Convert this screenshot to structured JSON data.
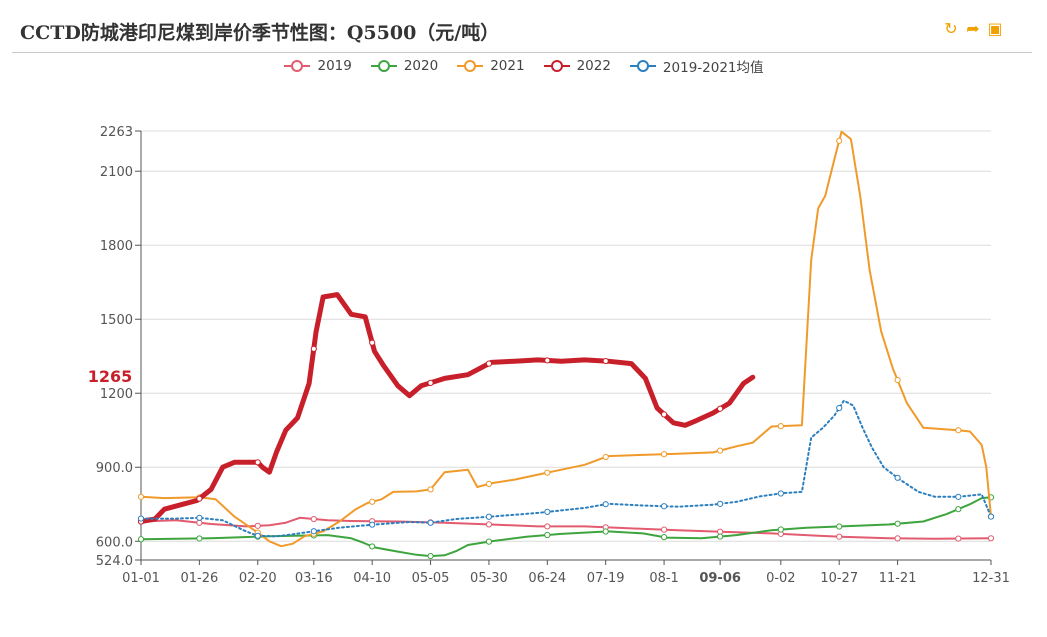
{
  "header": {
    "title": "CCTD防城港印尼煤到岸价季节性图：Q5500（元/吨）",
    "tools": [
      {
        "icon": "refresh-icon",
        "glyph": "↻"
      },
      {
        "icon": "share-icon",
        "glyph": "➦"
      },
      {
        "icon": "save-image-icon",
        "glyph": "▣"
      }
    ]
  },
  "chart_data": {
    "type": "line",
    "title": "CCTD防城港印尼煤到岸价季节性图：Q5500（元/吨）",
    "xlabel": "",
    "ylabel": "",
    "x_ticks": [
      "01-01",
      "01-26",
      "02-20",
      "03-16",
      "04-10",
      "05-05",
      "05-30",
      "06-24",
      "07-19",
      "08-1",
      "09-06",
      "0-02",
      "10-27",
      "11-21",
      "12-31"
    ],
    "x_tick_days": [
      0,
      25,
      50,
      74,
      99,
      124,
      149,
      174,
      199,
      224,
      248,
      274,
      299,
      324,
      364
    ],
    "highlight_x_tick": "09-06",
    "y_ticks": [
      524.0,
      600.0,
      900.0,
      1200,
      1500,
      1800,
      2100,
      2263
    ],
    "y_tick_labels": [
      "524.0",
      "600.0",
      "900.0",
      "1200",
      "1500",
      "1800",
      "2100",
      "2263"
    ],
    "ylim": [
      524,
      2263
    ],
    "highlight_y": {
      "value": 1265,
      "label": "1265",
      "color": "#c8202b"
    },
    "grid": true,
    "legend_position": "top-center",
    "series": [
      {
        "name": "2019",
        "color": "#e25b6e",
        "dashed": false,
        "width": 2,
        "points": [
          [
            0,
            680
          ],
          [
            15,
            685
          ],
          [
            30,
            670
          ],
          [
            45,
            660
          ],
          [
            55,
            665
          ],
          [
            62,
            675
          ],
          [
            68,
            695
          ],
          [
            74,
            690
          ],
          [
            80,
            685
          ],
          [
            90,
            682
          ],
          [
            110,
            680
          ],
          [
            130,
            675
          ],
          [
            150,
            668
          ],
          [
            170,
            660
          ],
          [
            190,
            660
          ],
          [
            210,
            652
          ],
          [
            230,
            645
          ],
          [
            250,
            638
          ],
          [
            270,
            632
          ],
          [
            290,
            622
          ],
          [
            300,
            618
          ],
          [
            320,
            612
          ],
          [
            340,
            610
          ],
          [
            364,
            612
          ]
        ]
      },
      {
        "name": "2020",
        "color": "#3ea43e",
        "dashed": false,
        "width": 2,
        "points": [
          [
            0,
            608
          ],
          [
            30,
            612
          ],
          [
            55,
            620
          ],
          [
            80,
            625
          ],
          [
            90,
            612
          ],
          [
            95,
            595
          ],
          [
            100,
            575
          ],
          [
            110,
            558
          ],
          [
            118,
            545
          ],
          [
            124,
            540
          ],
          [
            130,
            543
          ],
          [
            135,
            560
          ],
          [
            140,
            585
          ],
          [
            150,
            600
          ],
          [
            165,
            618
          ],
          [
            180,
            630
          ],
          [
            200,
            640
          ],
          [
            215,
            632
          ],
          [
            225,
            615
          ],
          [
            240,
            612
          ],
          [
            255,
            625
          ],
          [
            270,
            645
          ],
          [
            285,
            655
          ],
          [
            300,
            660
          ],
          [
            320,
            668
          ],
          [
            335,
            680
          ],
          [
            345,
            710
          ],
          [
            355,
            750
          ],
          [
            360,
            775
          ],
          [
            364,
            778
          ]
        ]
      },
      {
        "name": "2021",
        "color": "#f09a2a",
        "dashed": false,
        "width": 2,
        "points": [
          [
            0,
            780
          ],
          [
            10,
            775
          ],
          [
            25,
            778
          ],
          [
            32,
            770
          ],
          [
            40,
            700
          ],
          [
            50,
            635
          ],
          [
            55,
            600
          ],
          [
            60,
            580
          ],
          [
            65,
            590
          ],
          [
            70,
            620
          ],
          [
            78,
            640
          ],
          [
            85,
            680
          ],
          [
            92,
            730
          ],
          [
            97,
            755
          ],
          [
            103,
            770
          ],
          [
            108,
            800
          ],
          [
            118,
            802
          ],
          [
            124,
            810
          ],
          [
            130,
            880
          ],
          [
            140,
            890
          ],
          [
            144,
            820
          ],
          [
            150,
            835
          ],
          [
            160,
            850
          ],
          [
            170,
            870
          ],
          [
            180,
            890
          ],
          [
            190,
            910
          ],
          [
            200,
            945
          ],
          [
            215,
            950
          ],
          [
            230,
            955
          ],
          [
            245,
            960
          ],
          [
            255,
            985
          ],
          [
            262,
            1000
          ],
          [
            270,
            1065
          ],
          [
            283,
            1070
          ],
          [
            287,
            1740
          ],
          [
            290,
            1950
          ],
          [
            293,
            2000
          ],
          [
            297,
            2150
          ],
          [
            300,
            2260
          ],
          [
            304,
            2230
          ],
          [
            308,
            2000
          ],
          [
            312,
            1700
          ],
          [
            317,
            1450
          ],
          [
            322,
            1300
          ],
          [
            328,
            1160
          ],
          [
            335,
            1060
          ],
          [
            350,
            1050
          ],
          [
            355,
            1045
          ],
          [
            360,
            990
          ],
          [
            362,
            900
          ],
          [
            364,
            700
          ]
        ]
      },
      {
        "name": "2022",
        "color": "#c8202b",
        "dashed": false,
        "width": 5,
        "points": [
          [
            0,
            680
          ],
          [
            6,
            690
          ],
          [
            10,
            730
          ],
          [
            18,
            750
          ],
          [
            24,
            765
          ],
          [
            30,
            810
          ],
          [
            35,
            900
          ],
          [
            40,
            920
          ],
          [
            50,
            920
          ],
          [
            52,
            900
          ],
          [
            55,
            880
          ],
          [
            58,
            960
          ],
          [
            62,
            1050
          ],
          [
            67,
            1100
          ],
          [
            72,
            1240
          ],
          [
            75,
            1450
          ],
          [
            78,
            1590
          ],
          [
            84,
            1600
          ],
          [
            90,
            1520
          ],
          [
            96,
            1510
          ],
          [
            100,
            1370
          ],
          [
            104,
            1310
          ],
          [
            110,
            1230
          ],
          [
            115,
            1190
          ],
          [
            120,
            1230
          ],
          [
            130,
            1260
          ],
          [
            140,
            1275
          ],
          [
            150,
            1325
          ],
          [
            160,
            1330
          ],
          [
            170,
            1335
          ],
          [
            180,
            1330
          ],
          [
            190,
            1335
          ],
          [
            200,
            1330
          ],
          [
            210,
            1320
          ],
          [
            216,
            1260
          ],
          [
            221,
            1140
          ],
          [
            228,
            1080
          ],
          [
            233,
            1070
          ],
          [
            238,
            1090
          ],
          [
            245,
            1120
          ],
          [
            252,
            1160
          ],
          [
            258,
            1240
          ],
          [
            262,
            1265
          ]
        ]
      },
      {
        "name": "2019-2021均值",
        "color": "#2c7fbf",
        "dashed": true,
        "width": 2,
        "points": [
          [
            0,
            692
          ],
          [
            15,
            692
          ],
          [
            25,
            695
          ],
          [
            35,
            685
          ],
          [
            45,
            640
          ],
          [
            50,
            622
          ],
          [
            58,
            620
          ],
          [
            65,
            628
          ],
          [
            75,
            642
          ],
          [
            85,
            655
          ],
          [
            100,
            668
          ],
          [
            115,
            678
          ],
          [
            124,
            675
          ],
          [
            135,
            690
          ],
          [
            150,
            700
          ],
          [
            170,
            715
          ],
          [
            190,
            735
          ],
          [
            200,
            752
          ],
          [
            215,
            745
          ],
          [
            230,
            740
          ],
          [
            245,
            748
          ],
          [
            255,
            760
          ],
          [
            265,
            782
          ],
          [
            275,
            795
          ],
          [
            283,
            800
          ],
          [
            287,
            1020
          ],
          [
            292,
            1060
          ],
          [
            297,
            1110
          ],
          [
            301,
            1170
          ],
          [
            305,
            1150
          ],
          [
            309,
            1060
          ],
          [
            313,
            980
          ],
          [
            318,
            900
          ],
          [
            325,
            850
          ],
          [
            333,
            800
          ],
          [
            340,
            780
          ],
          [
            350,
            780
          ],
          [
            360,
            790
          ],
          [
            364,
            700
          ]
        ]
      }
    ],
    "hollow_marker_days": [
      0,
      25,
      50,
      74,
      99,
      124,
      149,
      174,
      199,
      224,
      248,
      274,
      299,
      324,
      350,
      364
    ]
  }
}
